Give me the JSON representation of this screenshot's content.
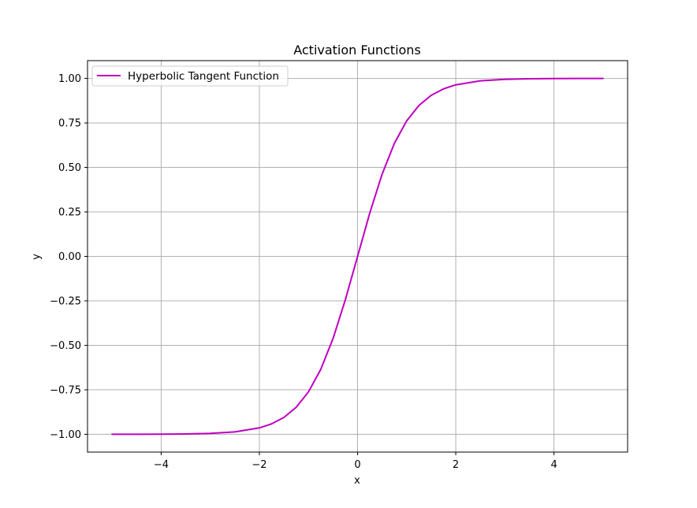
{
  "chart_data": {
    "type": "line",
    "title": "Activation Functions",
    "xlabel": "x",
    "ylabel": "y",
    "xlim": [
      -5.5,
      5.5
    ],
    "ylim": [
      -1.1,
      1.1
    ],
    "grid": true,
    "legend_position": "upper-left",
    "x_ticks": [
      -4,
      -2,
      0,
      2,
      4
    ],
    "x_tick_labels": [
      "−4",
      "−2",
      "0",
      "2",
      "4"
    ],
    "y_ticks": [
      -1.0,
      -0.75,
      -0.5,
      -0.25,
      0.0,
      0.25,
      0.5,
      0.75,
      1.0
    ],
    "y_tick_labels": [
      "−1.00",
      "−0.75",
      "−0.50",
      "−0.25",
      "0.00",
      "0.25",
      "0.50",
      "0.75",
      "1.00"
    ],
    "series": [
      {
        "name": "Hyperbolic Tangent Function",
        "color": "#bf00bf",
        "x": [
          -5.0,
          -4.5,
          -4.0,
          -3.5,
          -3.0,
          -2.5,
          -2.0,
          -1.75,
          -1.5,
          -1.25,
          -1.0,
          -0.75,
          -0.5,
          -0.25,
          0.0,
          0.25,
          0.5,
          0.75,
          1.0,
          1.25,
          1.5,
          1.75,
          2.0,
          2.5,
          3.0,
          3.5,
          4.0,
          4.5,
          5.0
        ],
        "y": [
          -0.9999,
          -0.9998,
          -0.9993,
          -0.9982,
          -0.9951,
          -0.9866,
          -0.964,
          -0.9414,
          -0.9051,
          -0.8483,
          -0.7616,
          -0.6351,
          -0.4621,
          -0.2449,
          0.0,
          0.2449,
          0.4621,
          0.6351,
          0.7616,
          0.8483,
          0.9051,
          0.9414,
          0.964,
          0.9866,
          0.9951,
          0.9982,
          0.9993,
          0.9998,
          0.9999
        ]
      }
    ]
  }
}
